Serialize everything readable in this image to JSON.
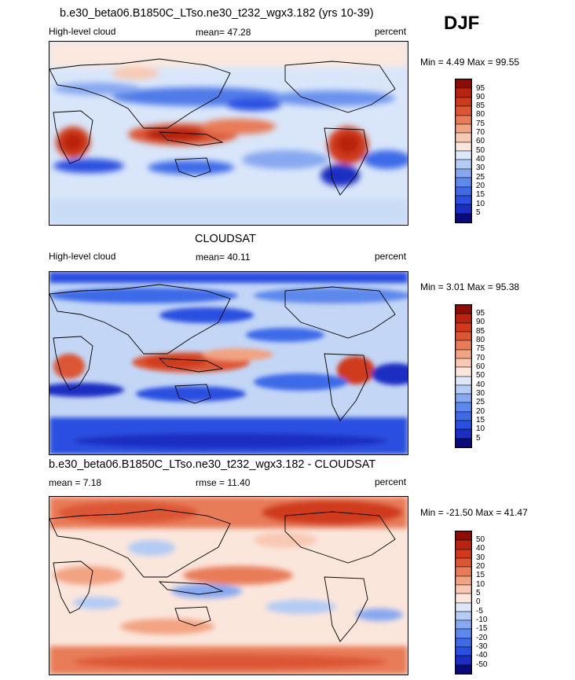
{
  "season": "DJF",
  "colormaps": {
    "cloud": [
      "#0a0a7a",
      "#1a2ec2",
      "#2b4fe0",
      "#3e6ae8",
      "#5d88ec",
      "#87a8f0",
      "#b4cbf4",
      "#dbe8fa",
      "#fbe6dc",
      "#f8c9b2",
      "#f2a382",
      "#e87c58",
      "#dc5634",
      "#cf3a1c",
      "#b8240f",
      "#8d0c08"
    ],
    "diff": [
      "#0a0a7a",
      "#1a2ec2",
      "#2b4fe0",
      "#3e6ae8",
      "#5d88ec",
      "#87a8f0",
      "#b4cbf4",
      "#dbe8fa",
      "#fbe6dc",
      "#f8c9b2",
      "#f2a382",
      "#e87c58",
      "#dc5634",
      "#cf3a1c",
      "#b8240f",
      "#8d0c08"
    ]
  },
  "panels": [
    {
      "id": "model",
      "title": "b.e30_beta06.B1850C_LTso.ne30_t232_wgx3.182 (yrs 10-39)",
      "left_label": "High-level cloud",
      "center_label": "mean=  47.28",
      "right_label": "percent",
      "minmax": "Min =   4.49 Max =  99.55",
      "colorbar_labels": [
        "95",
        "90",
        "85",
        "80",
        "75",
        "70",
        "60",
        "50",
        "40",
        "30",
        "25",
        "20",
        "15",
        "10",
        "5"
      ]
    },
    {
      "id": "obs",
      "title": "CLOUDSAT",
      "left_label": "High-level cloud",
      "center_label": "mean=  40.11",
      "right_label": "percent",
      "minmax": "Min =   3.01 Max =  95.38",
      "colorbar_labels": [
        "95",
        "90",
        "85",
        "80",
        "75",
        "70",
        "60",
        "50",
        "40",
        "30",
        "25",
        "20",
        "15",
        "10",
        "5"
      ]
    },
    {
      "id": "diff",
      "title": "b.e30_beta06.B1850C_LTso.ne30_t232_wgx3.182 - CLOUDSAT",
      "left_label": "mean =   7.18",
      "center_label": "rmse =  11.40",
      "right_label": "percent",
      "minmax": "Min = -21.50 Max =  41.47",
      "colorbar_labels": [
        "50",
        "40",
        "30",
        "20",
        "15",
        "10",
        "5",
        "0",
        "-5",
        "-10",
        "-15",
        "-20",
        "-30",
        "-40",
        "-50"
      ]
    }
  ]
}
